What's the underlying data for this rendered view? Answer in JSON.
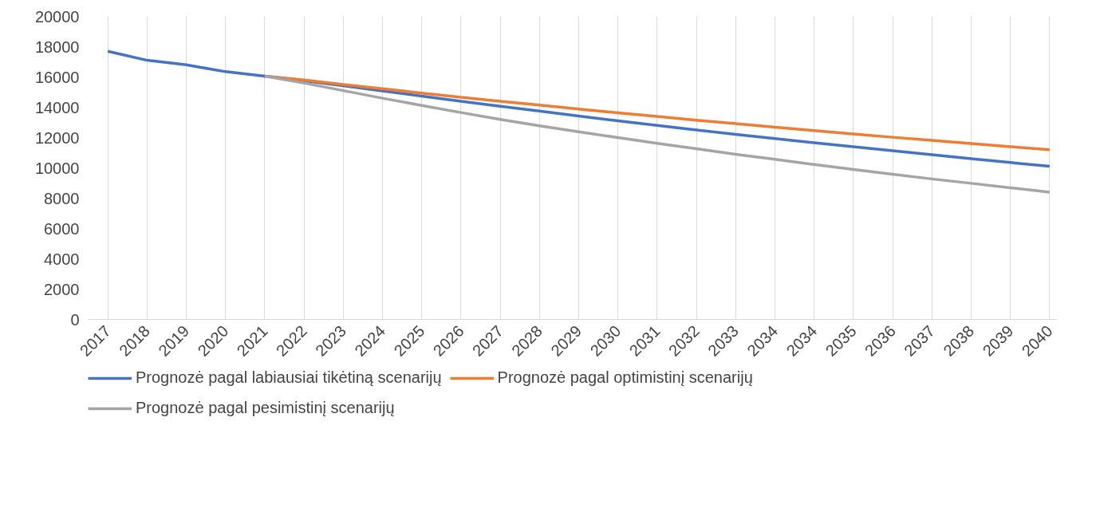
{
  "chart_data": {
    "type": "line",
    "categories": [
      "2017",
      "2018",
      "2019",
      "2020",
      "2021",
      "2022",
      "2023",
      "2024",
      "2025",
      "2026",
      "2027",
      "2028",
      "2029",
      "2030",
      "2031",
      "2032",
      "2033",
      "2034",
      "2034",
      "2035",
      "2036",
      "2037",
      "2038",
      "2039",
      "2040"
    ],
    "series": [
      {
        "name": "Prognozė pagal labiausiai tikėtiną scenarijų",
        "color": "#4472c4",
        "values": [
          17700,
          17100,
          16800,
          16350,
          16050,
          15750,
          15420,
          15080,
          14740,
          14400,
          14070,
          13750,
          13420,
          13100,
          12800,
          12500,
          12210,
          11930,
          11660,
          11390,
          11130,
          10870,
          10600,
          10350,
          10100
        ]
      },
      {
        "name": "Prognozė pagal optimistinį scenarijų",
        "color": "#ed7d31",
        "values": [
          null,
          null,
          null,
          null,
          16050,
          15800,
          15500,
          15220,
          14940,
          14660,
          14400,
          14140,
          13880,
          13630,
          13390,
          13150,
          12920,
          12690,
          12460,
          12240,
          12020,
          11810,
          11600,
          11400,
          11200
        ]
      },
      {
        "name": "Prognozė pagal pesimistinį scenarijų",
        "color": "#a5a5a5",
        "values": [
          null,
          null,
          null,
          null,
          16050,
          15600,
          15100,
          14600,
          14120,
          13650,
          13200,
          12780,
          12380,
          12000,
          11620,
          11260,
          10900,
          10560,
          10220,
          9890,
          9580,
          9270,
          8980,
          8690,
          8400
        ]
      }
    ],
    "ylim": [
      0,
      20000
    ],
    "yticks": [
      0,
      2000,
      4000,
      6000,
      8000,
      10000,
      12000,
      14000,
      16000,
      18000,
      20000
    ],
    "grid": "x",
    "legend": "bottom",
    "line_style": "solid",
    "marker": "none"
  }
}
